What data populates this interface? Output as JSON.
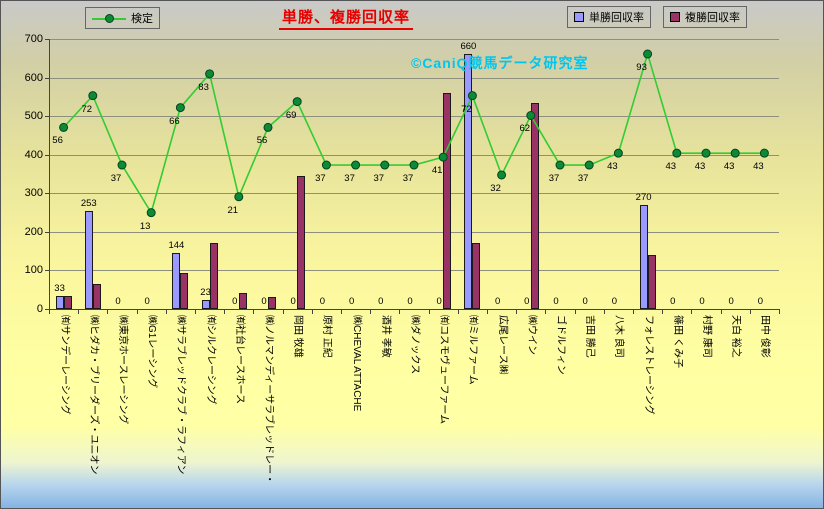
{
  "chart_data": {
    "type": "combo-bar-line",
    "title": "単勝、複勝回収率",
    "watermark": "©CaniQ競馬データ研究室",
    "categories": [
      "㈲サンデーレーシング",
      "㈱ヒダカ・ブリーダーズ・ユニオン",
      "㈱東京ホースレーシング",
      "㈱G1レーシング",
      "㈱サラブレッドクラブ・ラフィアン",
      "㈲シルクレーシング",
      "㈲社台レースホース",
      "㈱ノルマンディーサラブレッドレー・",
      "岡田 牧雄",
      "原村 正紀",
      "㈱CHEVAL ATTACHE",
      "酒井 孝敏",
      "㈱ダノックス",
      "㈲コスモヴューファーム",
      "㈲ミルファーム",
      "広尾レース㈱",
      "㈱ウイン",
      "ゴドルフィン",
      "吉田 勝己",
      "八木 良司",
      "フォレストレーシング",
      "篠田 くみ子",
      "村野 康司",
      "天白 裕之",
      "田中 俊彰"
    ],
    "series": [
      {
        "name": "単勝回収率",
        "type": "bar",
        "color": "#9999ff",
        "labels_shown": true,
        "values": [
          33,
          253,
          0,
          0,
          144,
          23,
          0,
          0,
          0,
          0,
          0,
          0,
          0,
          0,
          660,
          0,
          0,
          0,
          0,
          0,
          270,
          0,
          0,
          0,
          0
        ]
      },
      {
        "name": "複勝回収率",
        "type": "bar",
        "color": "#993366",
        "labels_shown": false,
        "values": [
          35,
          65,
          0,
          0,
          93,
          170,
          42,
          30,
          345,
          0,
          0,
          0,
          0,
          560,
          170,
          0,
          535,
          0,
          0,
          0,
          140,
          0,
          0,
          0,
          0
        ]
      },
      {
        "name": "検定",
        "type": "line",
        "color": "#33cc33",
        "marker_fill": "#0c8a34",
        "marker_stroke": "#044422",
        "labels_shown": true,
        "values": [
          56,
          72,
          37,
          13,
          66,
          83,
          21,
          56,
          69,
          37,
          37,
          37,
          37,
          41,
          72,
          32,
          62,
          37,
          37,
          43,
          93,
          43,
          43,
          43,
          43
        ],
        "plot_transform": {
          "offset": 183,
          "scale": 5.14,
          "note": "line drawn on primary axis at offset+scale*value (secondary axis not shown)"
        }
      }
    ],
    "y_axis": {
      "min": 0,
      "max": 700,
      "step": 100,
      "ticks": [
        700,
        600,
        500,
        400,
        300,
        200,
        100,
        0
      ]
    },
    "grid": "horizontal",
    "legend_position": "top",
    "colors": {
      "title": "#e60000",
      "watermark": "#00c6ef",
      "background_top": "#c9c9c9",
      "background_middle": "#ffff9e",
      "background_bottom": "#85b3e4",
      "gridline": "#8f8f7d"
    }
  }
}
